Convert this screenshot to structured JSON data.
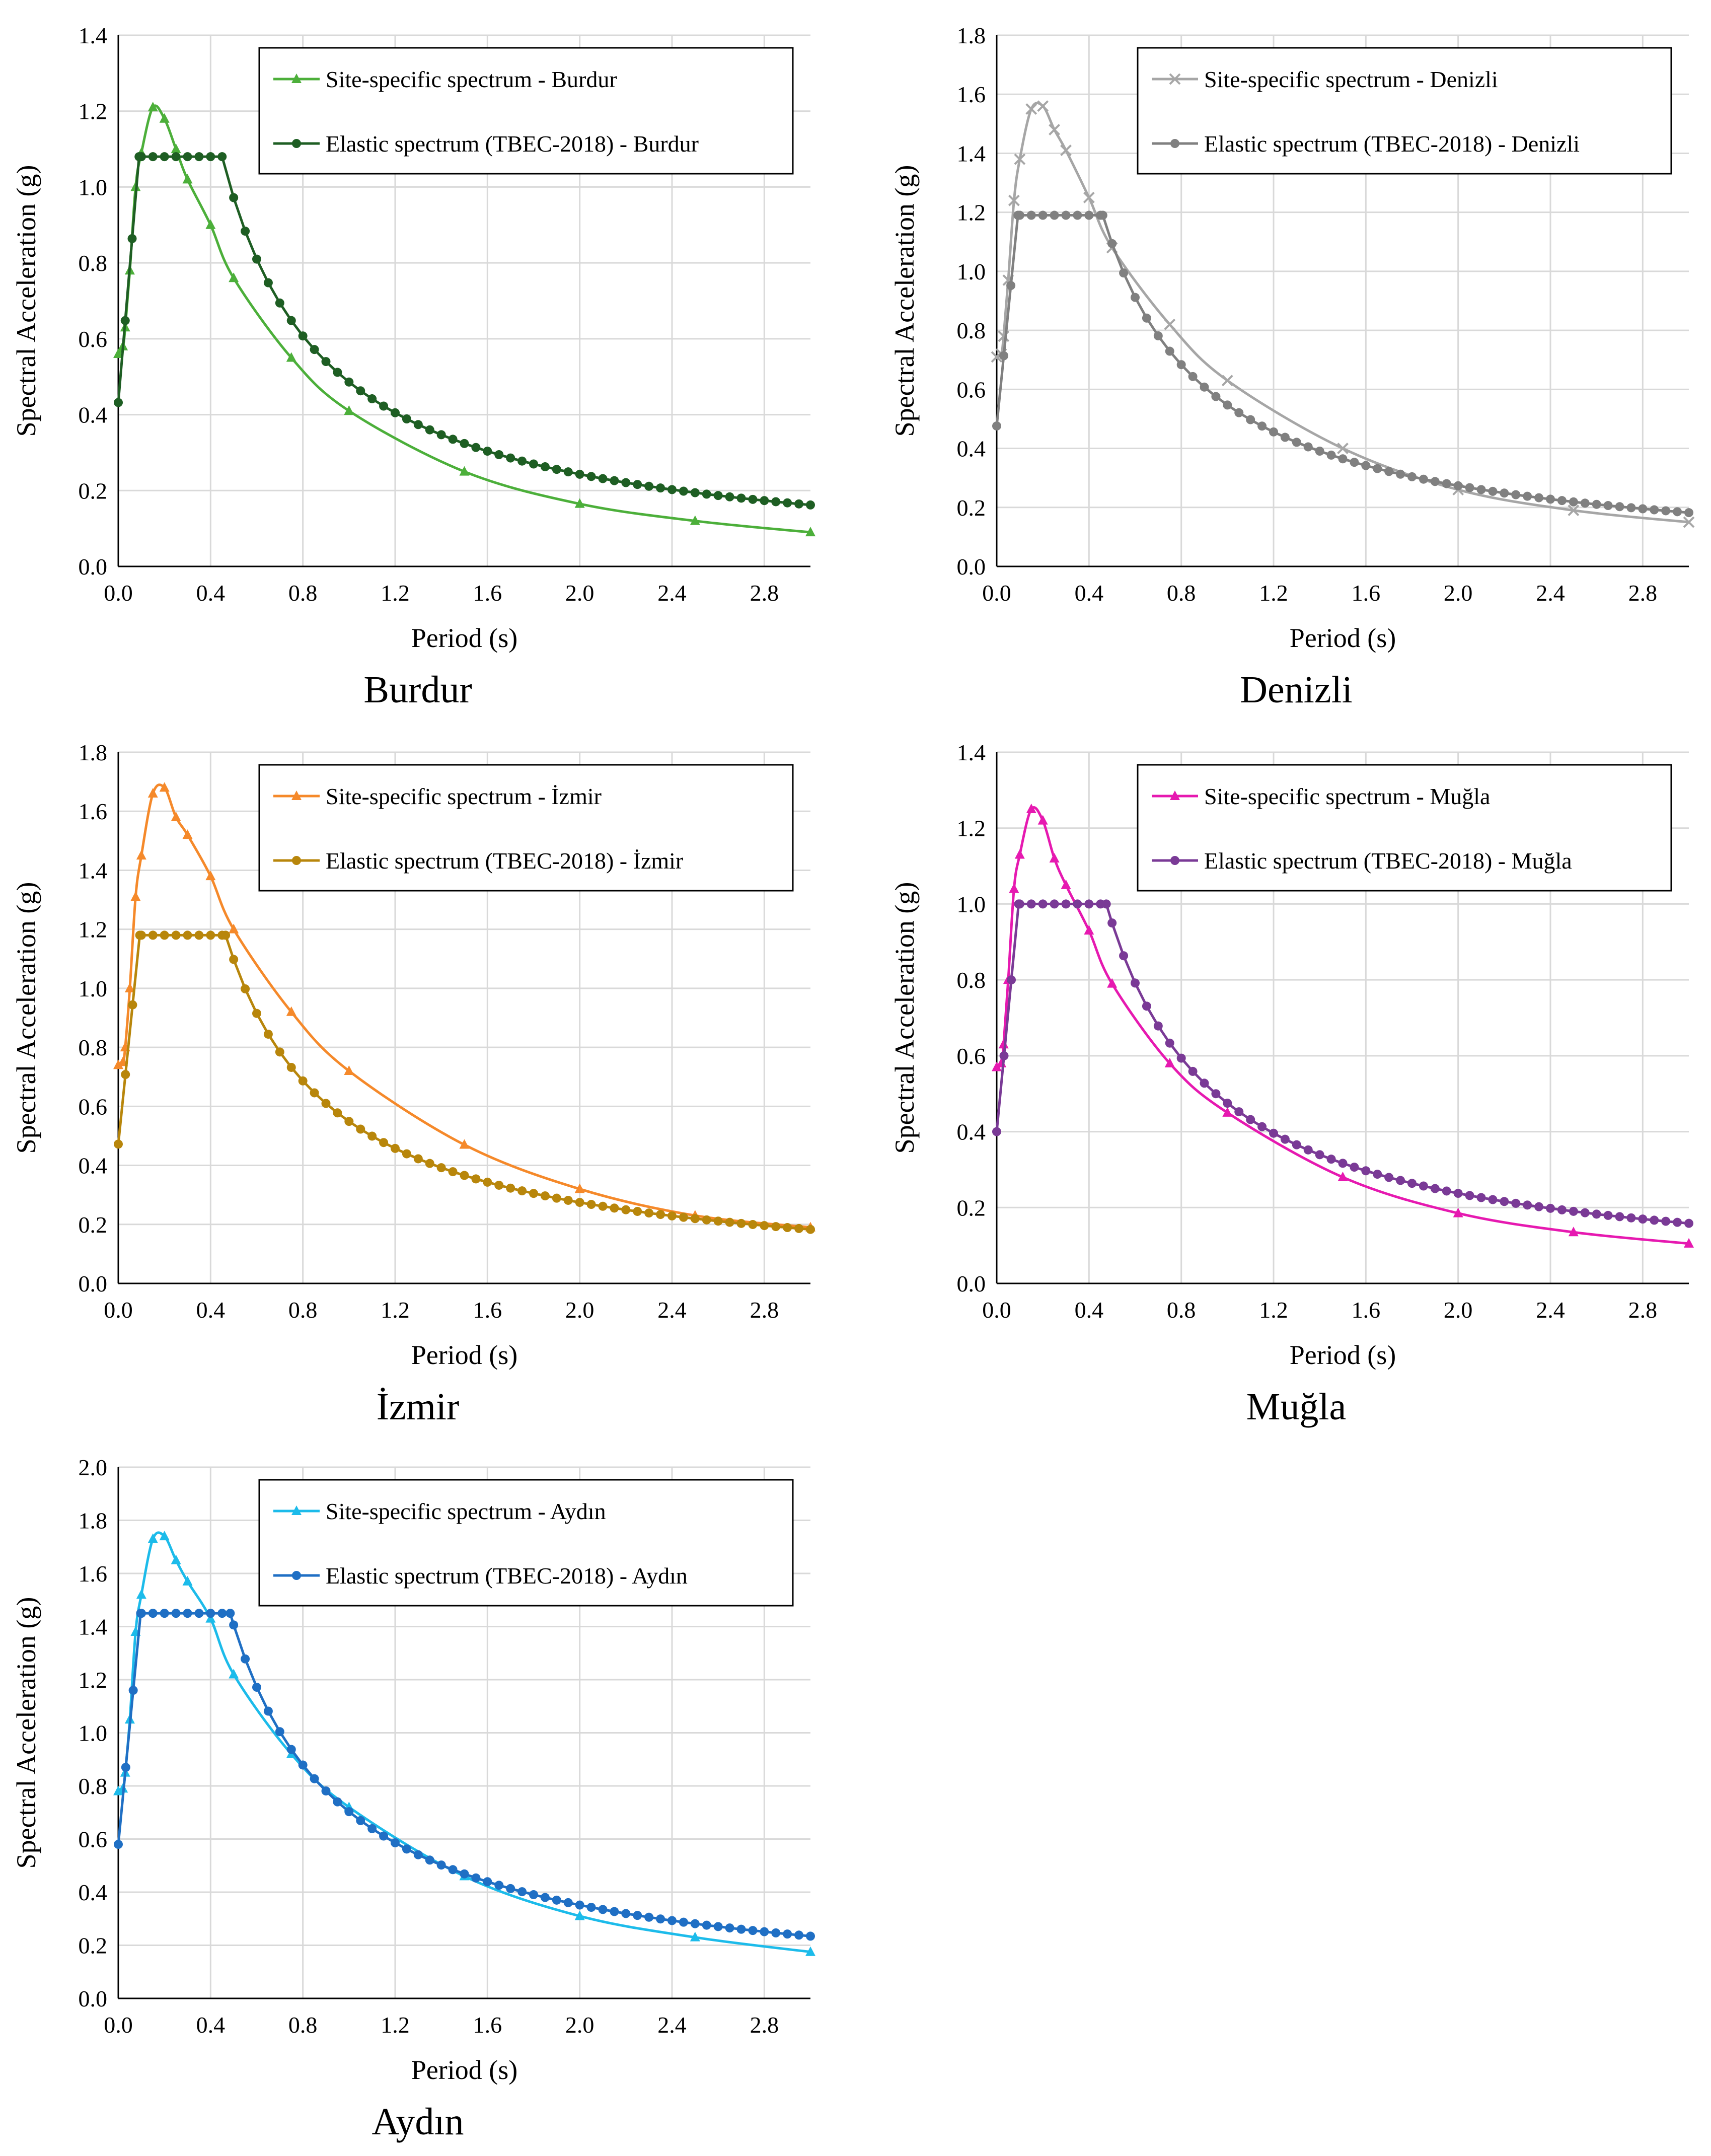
{
  "chart_data": [
    {
      "type": "line",
      "title": "Burdur",
      "xlabel": "Period (s)",
      "ylabel": "Spectral Acceleration (g)",
      "xlim": [
        0,
        3
      ],
      "ylim": [
        0,
        1.4
      ],
      "xticks": [
        0.0,
        0.4,
        0.8,
        1.2,
        1.6,
        2.0,
        2.4,
        2.8
      ],
      "yticks": [
        0.0,
        0.2,
        0.4,
        0.6,
        0.8,
        1.0,
        1.2,
        1.4
      ],
      "tick_decimals": 1,
      "legend_position": "top-right",
      "series": [
        {
          "name": "Site-specific spectrum - Burdur",
          "color": "#4caf3a",
          "marker": "triangle",
          "marker_mode": "points",
          "x": [
            0.0,
            0.02,
            0.03,
            0.05,
            0.075,
            0.1,
            0.15,
            0.2,
            0.25,
            0.3,
            0.4,
            0.5,
            0.75,
            1.0,
            1.5,
            2.0,
            2.5,
            3.0
          ],
          "y": [
            0.56,
            0.58,
            0.63,
            0.78,
            1.0,
            1.09,
            1.21,
            1.18,
            1.1,
            1.02,
            0.9,
            0.76,
            0.55,
            0.41,
            0.25,
            0.165,
            0.12,
            0.09
          ]
        },
        {
          "name": "Elastic spectrum (TBEC-2018) - Burdur",
          "color": "#1e5e23",
          "marker": "circle",
          "marker_mode": "every",
          "tbec": {
            "s0": 0.432,
            "sds": 1.08,
            "ta": 0.09,
            "tb": 0.45,
            "sd1": 0.486
          }
        }
      ]
    },
    {
      "type": "line",
      "title": "Denizli",
      "xlabel": "Period (s)",
      "ylabel": "Spectral Acceleration (g)",
      "xlim": [
        0,
        3
      ],
      "ylim": [
        0,
        1.8
      ],
      "xticks": [
        0.0,
        0.4,
        0.8,
        1.2,
        1.6,
        2.0,
        2.4,
        2.8
      ],
      "yticks": [
        0.0,
        0.2,
        0.4,
        0.6,
        0.8,
        1.0,
        1.2,
        1.4,
        1.6,
        1.8
      ],
      "tick_decimals": 1,
      "legend_position": "top-right",
      "series": [
        {
          "name": "Site-specific spectrum - Denizli",
          "color": "#a6a6a6",
          "marker": "cross",
          "marker_mode": "points",
          "x": [
            0.0,
            0.02,
            0.03,
            0.05,
            0.075,
            0.1,
            0.15,
            0.2,
            0.25,
            0.3,
            0.4,
            0.5,
            0.75,
            1.0,
            1.5,
            2.0,
            2.5,
            3.0
          ],
          "y": [
            0.71,
            0.72,
            0.78,
            0.97,
            1.24,
            1.38,
            1.55,
            1.56,
            1.48,
            1.41,
            1.25,
            1.08,
            0.82,
            0.63,
            0.4,
            0.26,
            0.19,
            0.15
          ]
        },
        {
          "name": "Elastic spectrum (TBEC-2018) - Denizli",
          "color": "#808080",
          "marker": "circle",
          "marker_mode": "every",
          "tbec": {
            "s0": 0.476,
            "sds": 1.19,
            "ta": 0.092,
            "tb": 0.46,
            "sd1": 0.547
          }
        }
      ]
    },
    {
      "type": "line",
      "title": "İzmir",
      "xlabel": "Period (s)",
      "ylabel": "Spectral Acceleration (g)",
      "xlim": [
        0,
        3
      ],
      "ylim": [
        0,
        1.8
      ],
      "xticks": [
        0.0,
        0.4,
        0.8,
        1.2,
        1.6,
        2.0,
        2.4,
        2.8
      ],
      "yticks": [
        0.0,
        0.2,
        0.4,
        0.6,
        0.8,
        1.0,
        1.2,
        1.4,
        1.6,
        1.8
      ],
      "tick_decimals": 1,
      "legend_position": "top-right",
      "series": [
        {
          "name": "Site-specific spectrum - İzmir",
          "color": "#f5892a",
          "marker": "triangle",
          "marker_mode": "points",
          "x": [
            0.0,
            0.02,
            0.03,
            0.05,
            0.075,
            0.1,
            0.15,
            0.2,
            0.25,
            0.3,
            0.4,
            0.5,
            0.75,
            1.0,
            1.5,
            2.0,
            2.5,
            3.0
          ],
          "y": [
            0.74,
            0.75,
            0.8,
            1.0,
            1.31,
            1.45,
            1.66,
            1.68,
            1.58,
            1.52,
            1.38,
            1.2,
            0.92,
            0.72,
            0.47,
            0.32,
            0.23,
            0.19
          ]
        },
        {
          "name": "Elastic spectrum (TBEC-2018) - İzmir",
          "color": "#b8860b",
          "marker": "circle",
          "marker_mode": "every",
          "tbec": {
            "s0": 0.472,
            "sds": 1.18,
            "ta": 0.093,
            "tb": 0.465,
            "sd1": 0.549
          }
        }
      ]
    },
    {
      "type": "line",
      "title": "Muğla",
      "xlabel": "Period (s)",
      "ylabel": "Spectral Acceleration (g)",
      "xlim": [
        0,
        3
      ],
      "ylim": [
        0,
        1.4
      ],
      "xticks": [
        0.0,
        0.4,
        0.8,
        1.2,
        1.6,
        2.0,
        2.4,
        2.8
      ],
      "yticks": [
        0.0,
        0.2,
        0.4,
        0.6,
        0.8,
        1.0,
        1.2,
        1.4
      ],
      "tick_decimals": 1,
      "legend_position": "top-right",
      "series": [
        {
          "name": "Site-specific spectrum - Muğla",
          "color": "#e619b0",
          "marker": "triangle",
          "marker_mode": "points",
          "x": [
            0.0,
            0.02,
            0.03,
            0.05,
            0.075,
            0.1,
            0.15,
            0.2,
            0.25,
            0.3,
            0.4,
            0.5,
            0.75,
            1.0,
            1.5,
            2.0,
            2.5,
            3.0
          ],
          "y": [
            0.57,
            0.58,
            0.63,
            0.8,
            1.04,
            1.13,
            1.25,
            1.22,
            1.12,
            1.05,
            0.93,
            0.79,
            0.58,
            0.45,
            0.28,
            0.185,
            0.135,
            0.105
          ]
        },
        {
          "name": "Elastic spectrum (TBEC-2018) - Muğla",
          "color": "#7a3a96",
          "marker": "circle",
          "marker_mode": "every",
          "tbec": {
            "s0": 0.4,
            "sds": 1.0,
            "ta": 0.095,
            "tb": 0.475,
            "sd1": 0.475
          }
        }
      ]
    },
    {
      "type": "line",
      "title": "Aydın",
      "xlabel": "Period (s)",
      "ylabel": "Spectral Acceleration (g)",
      "xlim": [
        0,
        3
      ],
      "ylim": [
        0,
        2
      ],
      "xticks": [
        0.0,
        0.4,
        0.8,
        1.2,
        1.6,
        2.0,
        2.4,
        2.8
      ],
      "yticks": [
        0.0,
        0.2,
        0.4,
        0.6,
        0.8,
        1.0,
        1.2,
        1.4,
        1.6,
        1.8,
        2.0
      ],
      "tick_decimals": 1,
      "legend_position": "top-right",
      "series": [
        {
          "name": "Site-specific spectrum - Aydın",
          "color": "#1cbbea",
          "marker": "triangle",
          "marker_mode": "points",
          "x": [
            0.0,
            0.02,
            0.03,
            0.05,
            0.075,
            0.1,
            0.15,
            0.2,
            0.25,
            0.3,
            0.4,
            0.5,
            0.75,
            1.0,
            1.5,
            2.0,
            2.5,
            3.0
          ],
          "y": [
            0.78,
            0.79,
            0.85,
            1.05,
            1.38,
            1.52,
            1.73,
            1.74,
            1.65,
            1.57,
            1.43,
            1.22,
            0.92,
            0.72,
            0.46,
            0.31,
            0.23,
            0.175
          ]
        },
        {
          "name": "Elastic spectrum (TBEC-2018) - Aydın",
          "color": "#1f6fc4",
          "marker": "circle",
          "marker_mode": "every",
          "tbec": {
            "s0": 0.58,
            "sds": 1.45,
            "ta": 0.097,
            "tb": 0.485,
            "sd1": 0.703
          }
        }
      ]
    }
  ]
}
